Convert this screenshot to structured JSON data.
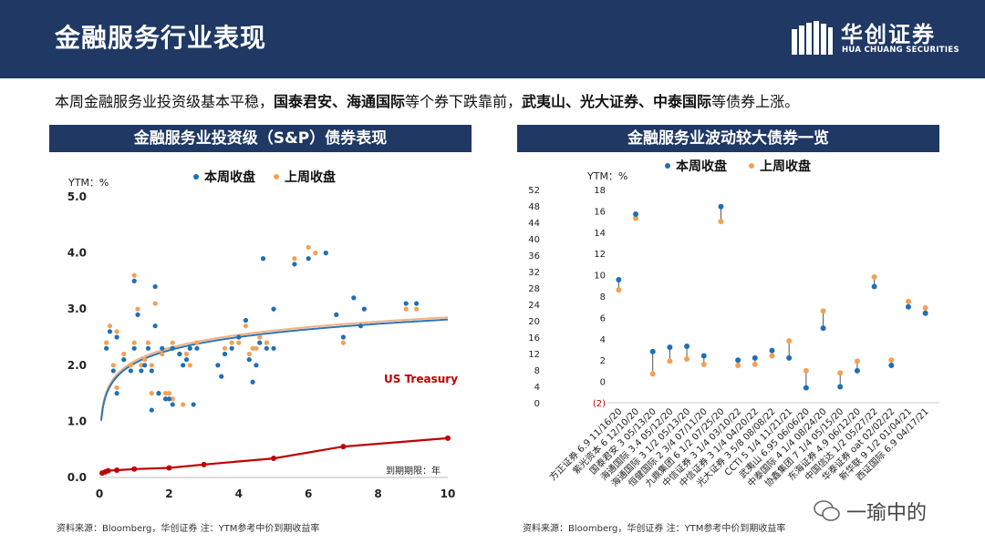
{
  "header": {
    "title": "金融服务行业表现"
  },
  "logo": {
    "name_cn": "华创证券",
    "name_en": "HUA CHUANG SECURITIES"
  },
  "summary": {
    "p1": "本周金融服务业投资级基本平稳，",
    "b1": "国泰君安、海通国际",
    "p2": "等个券下跌靠前，",
    "b2": "武夷山、光大证券、中泰国际",
    "p3": "等债券上涨。"
  },
  "left_panel": {
    "title": "金融服务业投资级（S&P）债券表现",
    "source": "资料来源：Bloomberg，华创证券    注：YTM参考中价到期收益率"
  },
  "right_panel": {
    "title": "金融服务业波动较大债券一览",
    "source": "资料来源：Bloomberg，华创证券    注：YTM参考中价到期收益率"
  },
  "watermark": {
    "text": "一瑜中的"
  },
  "colors": {
    "this_week": "#1f6fb5",
    "last_week": "#f4a055",
    "treasury": "#c00000",
    "fit_blue": "#2e75b6",
    "fit_orange": "#f4b183"
  },
  "chart_data": [
    {
      "type": "scatter",
      "ylabel": "YTM：%",
      "xlabel": "到期期限：年",
      "xlim": [
        0,
        10
      ],
      "ylim": [
        0,
        5
      ],
      "xticks": [
        "0",
        "2",
        "4",
        "6",
        "8",
        "10"
      ],
      "yticks": [
        "0.0",
        "1.0",
        "2.0",
        "3.0",
        "4.0",
        "5.0"
      ],
      "legend": [
        "本周收盘",
        "上周收盘"
      ],
      "annotation": "US Treasury",
      "series": [
        {
          "name": "本周收盘",
          "points": [
            [
              0.2,
              2.3
            ],
            [
              0.3,
              2.6
            ],
            [
              0.4,
              1.9
            ],
            [
              0.5,
              1.5
            ],
            [
              0.5,
              2.5
            ],
            [
              0.7,
              2.1
            ],
            [
              0.9,
              1.9
            ],
            [
              1.0,
              2.3
            ],
            [
              1.0,
              3.5
            ],
            [
              1.1,
              2.9
            ],
            [
              1.2,
              1.9
            ],
            [
              1.3,
              2.0
            ],
            [
              1.4,
              2.3
            ],
            [
              1.5,
              1.2
            ],
            [
              1.5,
              1.9
            ],
            [
              1.6,
              2.7
            ],
            [
              1.6,
              3.4
            ],
            [
              1.7,
              1.5
            ],
            [
              1.8,
              2.3
            ],
            [
              1.9,
              1.4
            ],
            [
              2.0,
              1.4
            ],
            [
              2.1,
              1.3
            ],
            [
              2.1,
              2.3
            ],
            [
              2.3,
              2.2
            ],
            [
              2.4,
              2.0
            ],
            [
              2.5,
              2.1
            ],
            [
              2.6,
              2.3
            ],
            [
              2.7,
              1.3
            ],
            [
              2.8,
              2.3
            ],
            [
              3.4,
              2.0
            ],
            [
              3.5,
              1.8
            ],
            [
              3.6,
              2.2
            ],
            [
              3.8,
              2.3
            ],
            [
              4.0,
              2.5
            ],
            [
              4.2,
              2.8
            ],
            [
              4.3,
              2.1
            ],
            [
              4.4,
              1.7
            ],
            [
              4.5,
              2.0
            ],
            [
              4.6,
              2.4
            ],
            [
              4.7,
              3.9
            ],
            [
              4.8,
              2.3
            ],
            [
              5.0,
              2.3
            ],
            [
              5.0,
              3.0
            ],
            [
              5.6,
              3.8
            ],
            [
              6.0,
              3.9
            ],
            [
              6.5,
              4.0
            ],
            [
              6.8,
              2.9
            ],
            [
              7.0,
              2.5
            ],
            [
              7.3,
              3.2
            ],
            [
              7.5,
              2.7
            ],
            [
              7.6,
              3.0
            ],
            [
              8.8,
              3.1
            ],
            [
              9.1,
              3.1
            ]
          ]
        },
        {
          "name": "上周收盘",
          "points": [
            [
              0.2,
              2.4
            ],
            [
              0.3,
              2.7
            ],
            [
              0.4,
              2.0
            ],
            [
              0.5,
              1.6
            ],
            [
              0.5,
              2.6
            ],
            [
              0.7,
              2.2
            ],
            [
              0.9,
              2.0
            ],
            [
              1.0,
              2.4
            ],
            [
              1.0,
              3.6
            ],
            [
              1.1,
              3.0
            ],
            [
              1.2,
              2.0
            ],
            [
              1.3,
              2.1
            ],
            [
              1.4,
              2.4
            ],
            [
              1.5,
              1.5
            ],
            [
              1.5,
              2.0
            ],
            [
              1.6,
              3.1
            ],
            [
              1.6,
              3.4
            ],
            [
              1.7,
              1.5
            ],
            [
              1.8,
              2.2
            ],
            [
              1.9,
              1.5
            ],
            [
              2.0,
              1.5
            ],
            [
              2.1,
              1.4
            ],
            [
              2.1,
              2.4
            ],
            [
              2.3,
              2.2
            ],
            [
              2.4,
              1.3
            ],
            [
              2.5,
              2.2
            ],
            [
              2.6,
              2.0
            ],
            [
              2.8,
              2.4
            ],
            [
              3.4,
              2.0
            ],
            [
              3.6,
              2.3
            ],
            [
              3.8,
              2.4
            ],
            [
              4.0,
              2.4
            ],
            [
              4.2,
              2.7
            ],
            [
              4.3,
              2.2
            ],
            [
              4.4,
              2.3
            ],
            [
              4.5,
              2.3
            ],
            [
              4.6,
              2.5
            ],
            [
              4.7,
              3.9
            ],
            [
              4.8,
              2.4
            ],
            [
              5.0,
              3.0
            ],
            [
              5.6,
              3.9
            ],
            [
              6.0,
              4.1
            ],
            [
              6.2,
              4.0
            ],
            [
              6.5,
              4.0
            ],
            [
              6.8,
              2.9
            ],
            [
              7.0,
              2.4
            ],
            [
              7.3,
              3.2
            ],
            [
              7.5,
              2.7
            ],
            [
              7.6,
              3.0
            ],
            [
              8.8,
              3.0
            ],
            [
              9.1,
              3.0
            ]
          ]
        },
        {
          "name": "US Treasury",
          "points": [
            [
              0.08,
              0.08
            ],
            [
              0.17,
              0.1
            ],
            [
              0.25,
              0.12
            ],
            [
              0.5,
              0.13
            ],
            [
              1,
              0.15
            ],
            [
              2,
              0.17
            ],
            [
              3,
              0.23
            ],
            [
              5,
              0.34
            ],
            [
              7,
              0.55
            ],
            [
              10,
              0.7
            ]
          ]
        }
      ]
    },
    {
      "type": "scatter",
      "ylabel": "YTM：%",
      "left_axis_ticks": [
        "0",
        "4",
        "8",
        "12",
        "16",
        "20",
        "24",
        "28",
        "32",
        "36",
        "40",
        "44",
        "48",
        "52"
      ],
      "right_axis_ticks": [
        "(2)",
        "0",
        "2",
        "4",
        "6",
        "8",
        "10",
        "12",
        "14",
        "16",
        "18"
      ],
      "legend": [
        "本周收盘",
        "上周收盘"
      ],
      "categories": [
        "方正证券 6.9 11/16/20",
        "紫光资本 6 12/10/20",
        "国泰君安 3 05/13/20",
        "海通国际 3.4 05/12/20",
        "海通国际 3 1/2 05/13/20",
        "恒健国际 2 3/4 07/11/20",
        "九鼎集团 6 1/2 07/25/20",
        "中信证券 3 1/4 03/10/22",
        "中信证券 3 1/4 04/20/22",
        "光大证券 3 5/8 08/08/22",
        "CCTI 5 1/4 11/21/21",
        "武夷山 6.95 06/06/20",
        "中泰国际 4 1/4 08/24/20",
        "协鑫集团 7 1/4 05/15/20",
        "东海证券 4.9 06/12/20",
        "中国信达 1/2 05/27/22",
        "华泰证券 oat 02/02/22",
        "新华联 9 1/2 01/04/21",
        "西证国际 6.9 04/17/21"
      ],
      "series": [
        {
          "name": "本周收盘",
          "axis": [
            "left",
            "left",
            "right",
            "right",
            "right",
            "right",
            "right",
            "right",
            "right",
            "right",
            "right",
            "right",
            "right",
            "right",
            "right",
            "right",
            "right",
            "right",
            "right"
          ],
          "values": [
            30.0,
            46.0,
            2.8,
            3.2,
            3.3,
            2.4,
            16.4,
            2.0,
            2.2,
            2.9,
            2.2,
            -0.6,
            5.0,
            -0.5,
            1.0,
            8.9,
            1.5,
            7.0,
            6.4
          ]
        },
        {
          "name": "上周收盘",
          "axis": [
            "left",
            "left",
            "right",
            "right",
            "right",
            "right",
            "right",
            "right",
            "right",
            "right",
            "right",
            "right",
            "right",
            "right",
            "right",
            "right",
            "right",
            "right",
            "right"
          ],
          "values": [
            27.5,
            45.0,
            0.7,
            1.9,
            2.1,
            1.6,
            15.0,
            1.5,
            1.6,
            2.4,
            3.8,
            1.0,
            6.6,
            0.8,
            1.9,
            9.8,
            2.0,
            7.5,
            6.9
          ]
        }
      ]
    }
  ]
}
